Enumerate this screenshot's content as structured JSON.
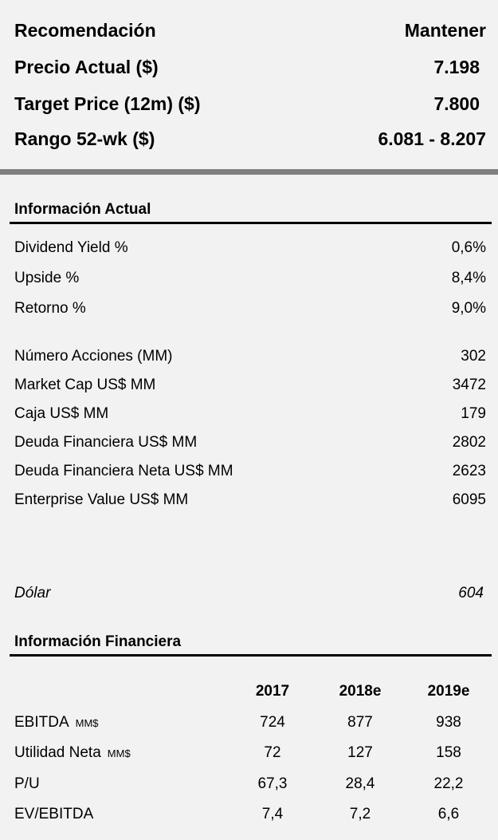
{
  "summary": [
    {
      "label": "Recomendación",
      "value": "Mantener"
    },
    {
      "label": "Precio Actual  ($)",
      "value": "7.198"
    },
    {
      "label": "Target Price (12m)  ($)",
      "value": "7.800"
    },
    {
      "label": "Rango 52-wk ($)",
      "value": "6.081 - 8.207"
    }
  ],
  "actual": {
    "title": "Información Actual",
    "rows": [
      {
        "label": "Dividend Yield %",
        "value": "0,6%"
      },
      {
        "label": "Upside %",
        "value": "8,4%"
      },
      {
        "label": "Retorno %",
        "value": "9,0%"
      },
      {
        "label": "Número Acciones (MM)",
        "value": "302"
      },
      {
        "label": "Market Cap US$ MM",
        "value": "3472"
      },
      {
        "label": "Caja  US$ MM",
        "value": "179"
      },
      {
        "label": "Deuda Financiera  US$ MM",
        "value": "2802"
      },
      {
        "label": "Deuda Financiera Neta  US$ MM",
        "value": "2623"
      },
      {
        "label": "Enterprise Value US$ MM",
        "value": "6095"
      }
    ],
    "dolar": {
      "label": "Dólar",
      "value": "604"
    }
  },
  "financiera": {
    "title": "Información Financiera",
    "years": [
      "2017",
      "2018e",
      "2019e"
    ],
    "rows": [
      {
        "label": "EBITDA",
        "unit": "MM$",
        "values": [
          "724",
          "877",
          "938"
        ]
      },
      {
        "label": "Utilidad Neta",
        "unit": "MM$",
        "values": [
          "72",
          "127",
          "158"
        ]
      },
      {
        "label": "P/U",
        "unit": "",
        "values": [
          "67,3",
          "28,4",
          "22,2"
        ]
      },
      {
        "label": "EV/EBITDA",
        "unit": "",
        "values": [
          "7,4",
          "7,2",
          "6,6"
        ]
      }
    ]
  }
}
